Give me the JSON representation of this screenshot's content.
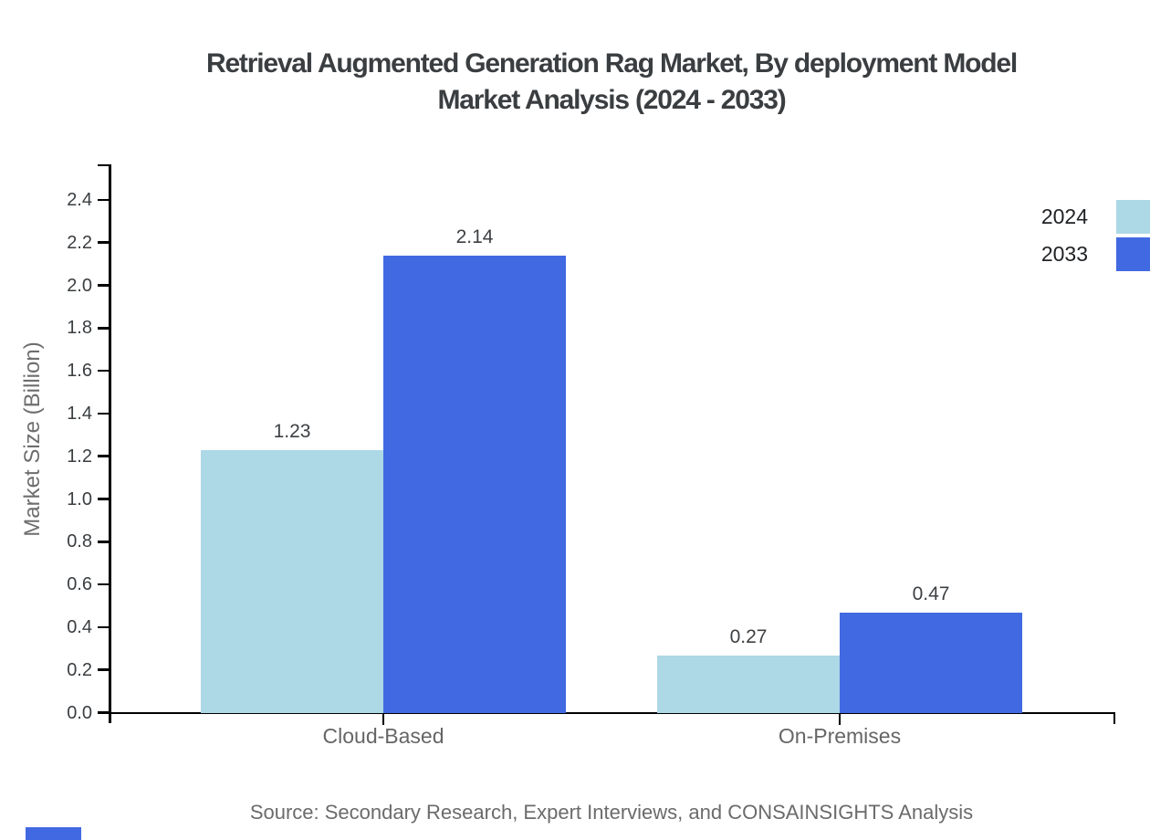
{
  "page": {
    "background": "#ffffff"
  },
  "header": {
    "title_line1": "Retrieval Augmented Generation Rag Market, By deployment Model",
    "title_line2": "Market Analysis (2024 - 2033)"
  },
  "footer": {
    "source_note": "Source: Secondary Research, Expert Interviews, and CONSAINSIGHTS Analysis"
  },
  "legend": {
    "position": "top-right-outside",
    "items": [
      {
        "label": "2024",
        "color": "#ADD8E6"
      },
      {
        "label": "2033",
        "color": "#4169E1"
      }
    ]
  },
  "chart_data": {
    "type": "bar",
    "title": "Retrieval Augmented Generation Rag Market, By deployment Model Market Analysis (2024 - 2033)",
    "categories": [
      "Cloud-Based",
      "On-Premises"
    ],
    "series": [
      {
        "name": "2024",
        "color": "#ADD8E6",
        "values": [
          1.23,
          0.27
        ]
      },
      {
        "name": "2033",
        "color": "#4169E1",
        "values": [
          2.14,
          0.47
        ]
      }
    ],
    "xlabel": "",
    "ylabel": "Market Size (Billion)",
    "ylim": [
      0.0,
      2.56
    ],
    "yticks": [
      0.0,
      0.2,
      0.4,
      0.6,
      0.8,
      1.0,
      1.2,
      1.4,
      1.6,
      1.8,
      2.0,
      2.2,
      2.4
    ],
    "ytick_decimals": 1,
    "value_label_decimals": 2,
    "grid": false,
    "legend_position": "top-right-outside"
  },
  "colors": {
    "axis": "#000000",
    "title_text": "#3a3e41",
    "tick_label_text": "#3a3e41",
    "value_label_text": "#3d4043",
    "category_label_text": "#666666",
    "muted_text": "#6b6b6b",
    "legend_text": "#1f2124",
    "series_2024": "#ADD8E6",
    "series_2033": "#4169E1",
    "watermark_accent": "#4169E1"
  }
}
